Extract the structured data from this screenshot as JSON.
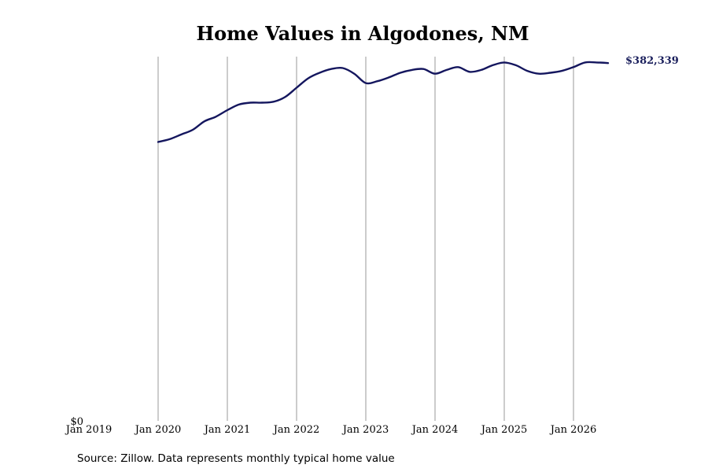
{
  "chart_data": {
    "type": "line",
    "title": "Home Values in Algodones, NM",
    "xlabel": "",
    "ylabel": "",
    "y_zero_label": "$0",
    "x_ticks": [
      "Jan 2019",
      "Jan 2020",
      "Jan 2021",
      "Jan 2022",
      "Jan 2023",
      "Jan 2024",
      "Jan 2025",
      "Jan 2026"
    ],
    "grid": "vertical",
    "ylim": [
      0,
      385000
    ],
    "series": [
      {
        "color": "#14165e",
        "x": [
          "2020-01",
          "2020-03",
          "2020-05",
          "2020-07",
          "2020-09",
          "2020-11",
          "2021-01",
          "2021-03",
          "2021-05",
          "2021-07",
          "2021-09",
          "2021-11",
          "2022-01",
          "2022-03",
          "2022-05",
          "2022-07",
          "2022-09",
          "2022-11",
          "2023-01",
          "2023-03",
          "2023-05",
          "2023-07",
          "2023-09",
          "2023-11",
          "2024-01",
          "2024-03",
          "2024-05",
          "2024-07",
          "2024-09",
          "2024-11",
          "2025-01",
          "2025-03",
          "2025-05",
          "2025-07",
          "2025-09",
          "2025-11",
          "2026-01",
          "2026-03",
          "2026-05",
          "2026-07"
        ],
        "values": [
          298000,
          301000,
          306000,
          311000,
          320000,
          325000,
          332000,
          338000,
          340000,
          340000,
          341000,
          346000,
          356000,
          366000,
          372000,
          376000,
          377000,
          371000,
          361000,
          363000,
          367000,
          372000,
          375000,
          376000,
          371000,
          375000,
          378000,
          373000,
          375000,
          380000,
          383000,
          380000,
          374000,
          371000,
          372000,
          374000,
          378000,
          383000,
          383000,
          382339
        ]
      }
    ],
    "end_label": "$382,339",
    "source": "Source: Zillow. Data represents monthly typical home value"
  }
}
